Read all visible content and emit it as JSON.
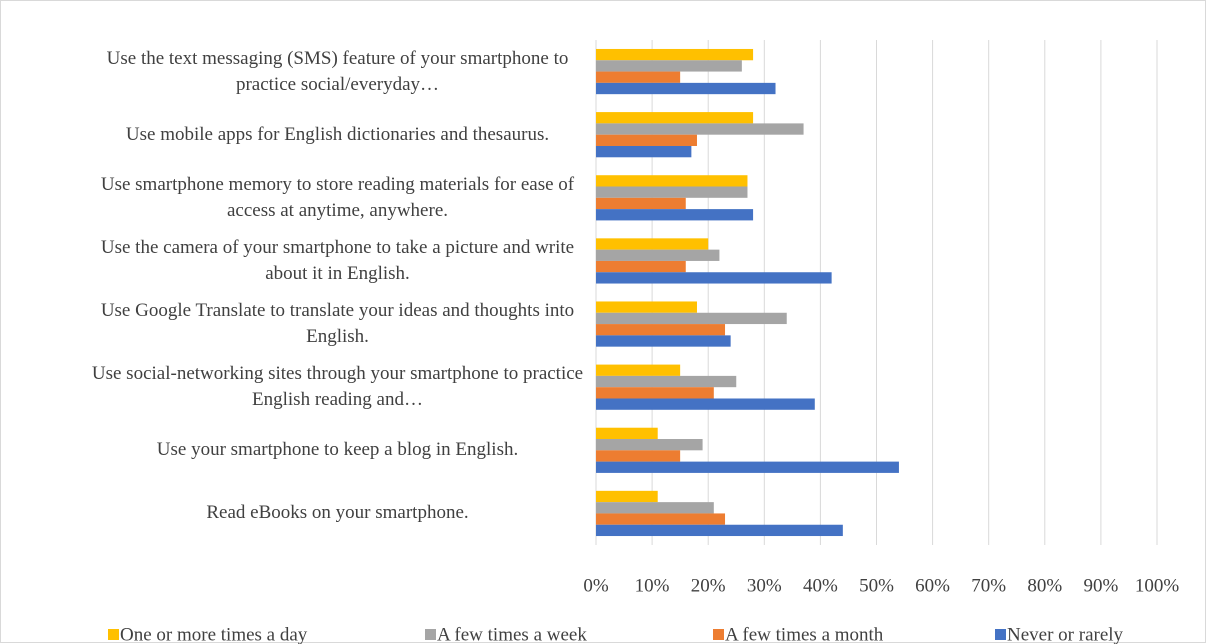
{
  "chart_data": {
    "type": "bar",
    "orientation": "horizontal",
    "categories": [
      "Use the text messaging (SMS) feature of your smartphone to practice social/everyday…",
      "Use mobile apps for English dictionaries and thesaurus.",
      "Use smartphone memory to store reading materials for ease of access at anytime, anywhere.",
      "Use the camera of your smartphone to take a picture and write about it in English.",
      "Use Google Translate to translate your ideas and thoughts into English.",
      "Use social-networking sites through your smartphone to practice English reading and…",
      "Use your smartphone to keep a blog in English.",
      "Read eBooks on your smartphone."
    ],
    "series": [
      {
        "name": "One or more times a day",
        "color": "#ffc000",
        "values": [
          28,
          28,
          27,
          20,
          18,
          15,
          11,
          11
        ]
      },
      {
        "name": "A few times a week",
        "color": "#a5a5a5",
        "values": [
          26,
          37,
          27,
          22,
          34,
          25,
          19,
          21
        ]
      },
      {
        "name": "A few times a month",
        "color": "#ed7d31",
        "values": [
          15,
          18,
          16,
          16,
          23,
          21,
          15,
          23
        ]
      },
      {
        "name": "Never or rarely",
        "color": "#4472c4",
        "values": [
          32,
          17,
          28,
          42,
          24,
          39,
          54,
          44
        ]
      }
    ],
    "xlim": [
      0,
      100
    ],
    "xticks": [
      {
        "value": 0,
        "label": "0%"
      },
      {
        "value": 10,
        "label": "10%"
      },
      {
        "value": 20,
        "label": "20%"
      },
      {
        "value": 30,
        "label": "30%"
      },
      {
        "value": 40,
        "label": "40%"
      },
      {
        "value": 50,
        "label": "50%"
      },
      {
        "value": 60,
        "label": "60%"
      },
      {
        "value": 70,
        "label": "70%"
      },
      {
        "value": 80,
        "label": "80%"
      },
      {
        "value": 90,
        "label": "90%"
      },
      {
        "value": 100,
        "label": "100%"
      }
    ],
    "grid": true,
    "legend": "bottom"
  }
}
